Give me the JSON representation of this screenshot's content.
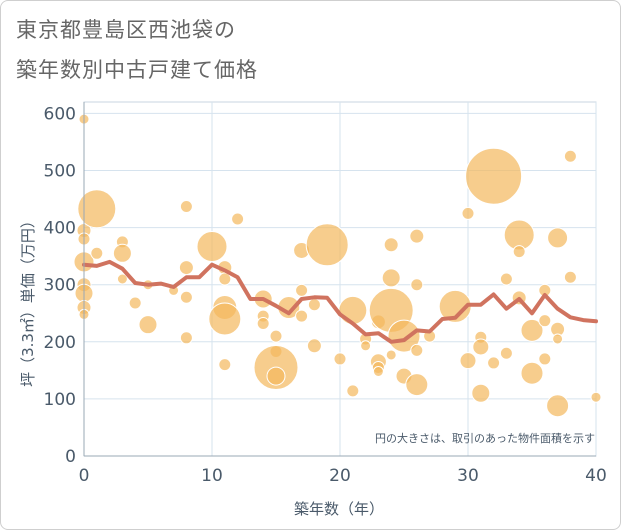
{
  "title_line1": "東京都豊島区西池袋の",
  "title_line2": "築年数別中古戸建て価格",
  "chart_data": {
    "type": "scatter",
    "title": "東京都豊島区西池袋の築年数別中古戸建て価格",
    "xlabel": "築年数（年）",
    "ylabel": "坪（3.3㎡）単価（万円）",
    "xlim": [
      0,
      40
    ],
    "ylim": [
      0,
      620
    ],
    "xticks": [
      0,
      10,
      20,
      30,
      40
    ],
    "yticks": [
      0,
      100,
      200,
      300,
      400,
      500,
      600
    ],
    "annotation": "円の大きさは、取引のあった物件面積を示す",
    "colors": {
      "bubble": "#f3b85d",
      "line": "#d0735f",
      "grid": "#d6e3ee",
      "axis": "#4a5a6a",
      "title": "#666666"
    },
    "bubbles": [
      {
        "x": 0,
        "y": 590,
        "s": 5
      },
      {
        "x": 0,
        "y": 395,
        "s": 7
      },
      {
        "x": 0,
        "y": 380,
        "s": 6
      },
      {
        "x": 0,
        "y": 340,
        "s": 10
      },
      {
        "x": 0,
        "y": 300,
        "s": 7
      },
      {
        "x": 0,
        "y": 285,
        "s": 9
      },
      {
        "x": 0,
        "y": 260,
        "s": 7
      },
      {
        "x": 0,
        "y": 248,
        "s": 5
      },
      {
        "x": 1,
        "y": 433,
        "s": 19
      },
      {
        "x": 1,
        "y": 355,
        "s": 6
      },
      {
        "x": 3,
        "y": 375,
        "s": 6
      },
      {
        "x": 3,
        "y": 355,
        "s": 9
      },
      {
        "x": 3,
        "y": 310,
        "s": 5
      },
      {
        "x": 4,
        "y": 268,
        "s": 6
      },
      {
        "x": 5,
        "y": 300,
        "s": 5
      },
      {
        "x": 5,
        "y": 230,
        "s": 9
      },
      {
        "x": 7,
        "y": 290,
        "s": 5
      },
      {
        "x": 8,
        "y": 437,
        "s": 6
      },
      {
        "x": 8,
        "y": 330,
        "s": 7
      },
      {
        "x": 8,
        "y": 278,
        "s": 6
      },
      {
        "x": 8,
        "y": 207,
        "s": 6
      },
      {
        "x": 10,
        "y": 367,
        "s": 15
      },
      {
        "x": 11,
        "y": 330,
        "s": 7
      },
      {
        "x": 11,
        "y": 310,
        "s": 6
      },
      {
        "x": 11,
        "y": 260,
        "s": 12
      },
      {
        "x": 11,
        "y": 240,
        "s": 16
      },
      {
        "x": 11,
        "y": 160,
        "s": 6
      },
      {
        "x": 12,
        "y": 415,
        "s": 6
      },
      {
        "x": 14,
        "y": 275,
        "s": 9
      },
      {
        "x": 14,
        "y": 245,
        "s": 6
      },
      {
        "x": 14,
        "y": 232,
        "s": 6
      },
      {
        "x": 15,
        "y": 210,
        "s": 6
      },
      {
        "x": 15,
        "y": 183,
        "s": 6
      },
      {
        "x": 15,
        "y": 155,
        "s": 22
      },
      {
        "x": 15,
        "y": 140,
        "s": 9
      },
      {
        "x": 16,
        "y": 260,
        "s": 11
      },
      {
        "x": 17,
        "y": 360,
        "s": 8
      },
      {
        "x": 17,
        "y": 290,
        "s": 6
      },
      {
        "x": 17,
        "y": 245,
        "s": 6
      },
      {
        "x": 18,
        "y": 193,
        "s": 7
      },
      {
        "x": 19,
        "y": 370,
        "s": 21
      },
      {
        "x": 18,
        "y": 265,
        "s": 6
      },
      {
        "x": 20,
        "y": 170,
        "s": 6
      },
      {
        "x": 21,
        "y": 255,
        "s": 14
      },
      {
        "x": 21,
        "y": 114,
        "s": 6
      },
      {
        "x": 22,
        "y": 205,
        "s": 6
      },
      {
        "x": 22,
        "y": 193,
        "s": 5
      },
      {
        "x": 23,
        "y": 235,
        "s": 7
      },
      {
        "x": 23,
        "y": 165,
        "s": 8
      },
      {
        "x": 23,
        "y": 155,
        "s": 6
      },
      {
        "x": 23,
        "y": 148,
        "s": 5
      },
      {
        "x": 24,
        "y": 370,
        "s": 7
      },
      {
        "x": 24,
        "y": 312,
        "s": 9
      },
      {
        "x": 24,
        "y": 255,
        "s": 22
      },
      {
        "x": 24,
        "y": 177,
        "s": 5
      },
      {
        "x": 25,
        "y": 210,
        "s": 16
      },
      {
        "x": 25,
        "y": 140,
        "s": 8
      },
      {
        "x": 26,
        "y": 385,
        "s": 7
      },
      {
        "x": 26,
        "y": 300,
        "s": 6
      },
      {
        "x": 26,
        "y": 185,
        "s": 6
      },
      {
        "x": 26,
        "y": 125,
        "s": 11
      },
      {
        "x": 27,
        "y": 210,
        "s": 6
      },
      {
        "x": 29,
        "y": 262,
        "s": 16
      },
      {
        "x": 30,
        "y": 425,
        "s": 6
      },
      {
        "x": 30,
        "y": 167,
        "s": 8
      },
      {
        "x": 31,
        "y": 208,
        "s": 6
      },
      {
        "x": 31,
        "y": 191,
        "s": 8
      },
      {
        "x": 31,
        "y": 110,
        "s": 9
      },
      {
        "x": 32,
        "y": 490,
        "s": 28
      },
      {
        "x": 32,
        "y": 163,
        "s": 6
      },
      {
        "x": 33,
        "y": 310,
        "s": 6
      },
      {
        "x": 33,
        "y": 180,
        "s": 6
      },
      {
        "x": 34,
        "y": 387,
        "s": 15
      },
      {
        "x": 34,
        "y": 358,
        "s": 6
      },
      {
        "x": 34,
        "y": 277,
        "s": 7
      },
      {
        "x": 35,
        "y": 220,
        "s": 11
      },
      {
        "x": 35,
        "y": 145,
        "s": 11
      },
      {
        "x": 36,
        "y": 290,
        "s": 6
      },
      {
        "x": 36,
        "y": 237,
        "s": 6
      },
      {
        "x": 36,
        "y": 170,
        "s": 6
      },
      {
        "x": 37,
        "y": 382,
        "s": 10
      },
      {
        "x": 37,
        "y": 222,
        "s": 7
      },
      {
        "x": 37,
        "y": 205,
        "s": 5
      },
      {
        "x": 37,
        "y": 88,
        "s": 11
      },
      {
        "x": 38,
        "y": 525,
        "s": 6
      },
      {
        "x": 38,
        "y": 313,
        "s": 6
      },
      {
        "x": 40,
        "y": 103,
        "s": 5
      }
    ],
    "line": {
      "x": [
        0,
        1,
        2,
        3,
        4,
        5,
        6,
        7,
        8,
        9,
        10,
        11,
        12,
        13,
        14,
        15,
        16,
        17,
        18,
        19,
        20,
        21,
        22,
        23,
        24,
        25,
        26,
        27,
        28,
        29,
        30,
        31,
        32,
        33,
        34,
        35,
        36,
        37,
        38,
        39,
        40
      ],
      "y": [
        335,
        333,
        340,
        328,
        303,
        300,
        302,
        296,
        313,
        313,
        335,
        325,
        313,
        275,
        275,
        263,
        250,
        275,
        278,
        277,
        248,
        232,
        213,
        215,
        200,
        203,
        220,
        218,
        240,
        242,
        265,
        265,
        283,
        258,
        275,
        250,
        282,
        258,
        243,
        238,
        236
      ]
    }
  }
}
